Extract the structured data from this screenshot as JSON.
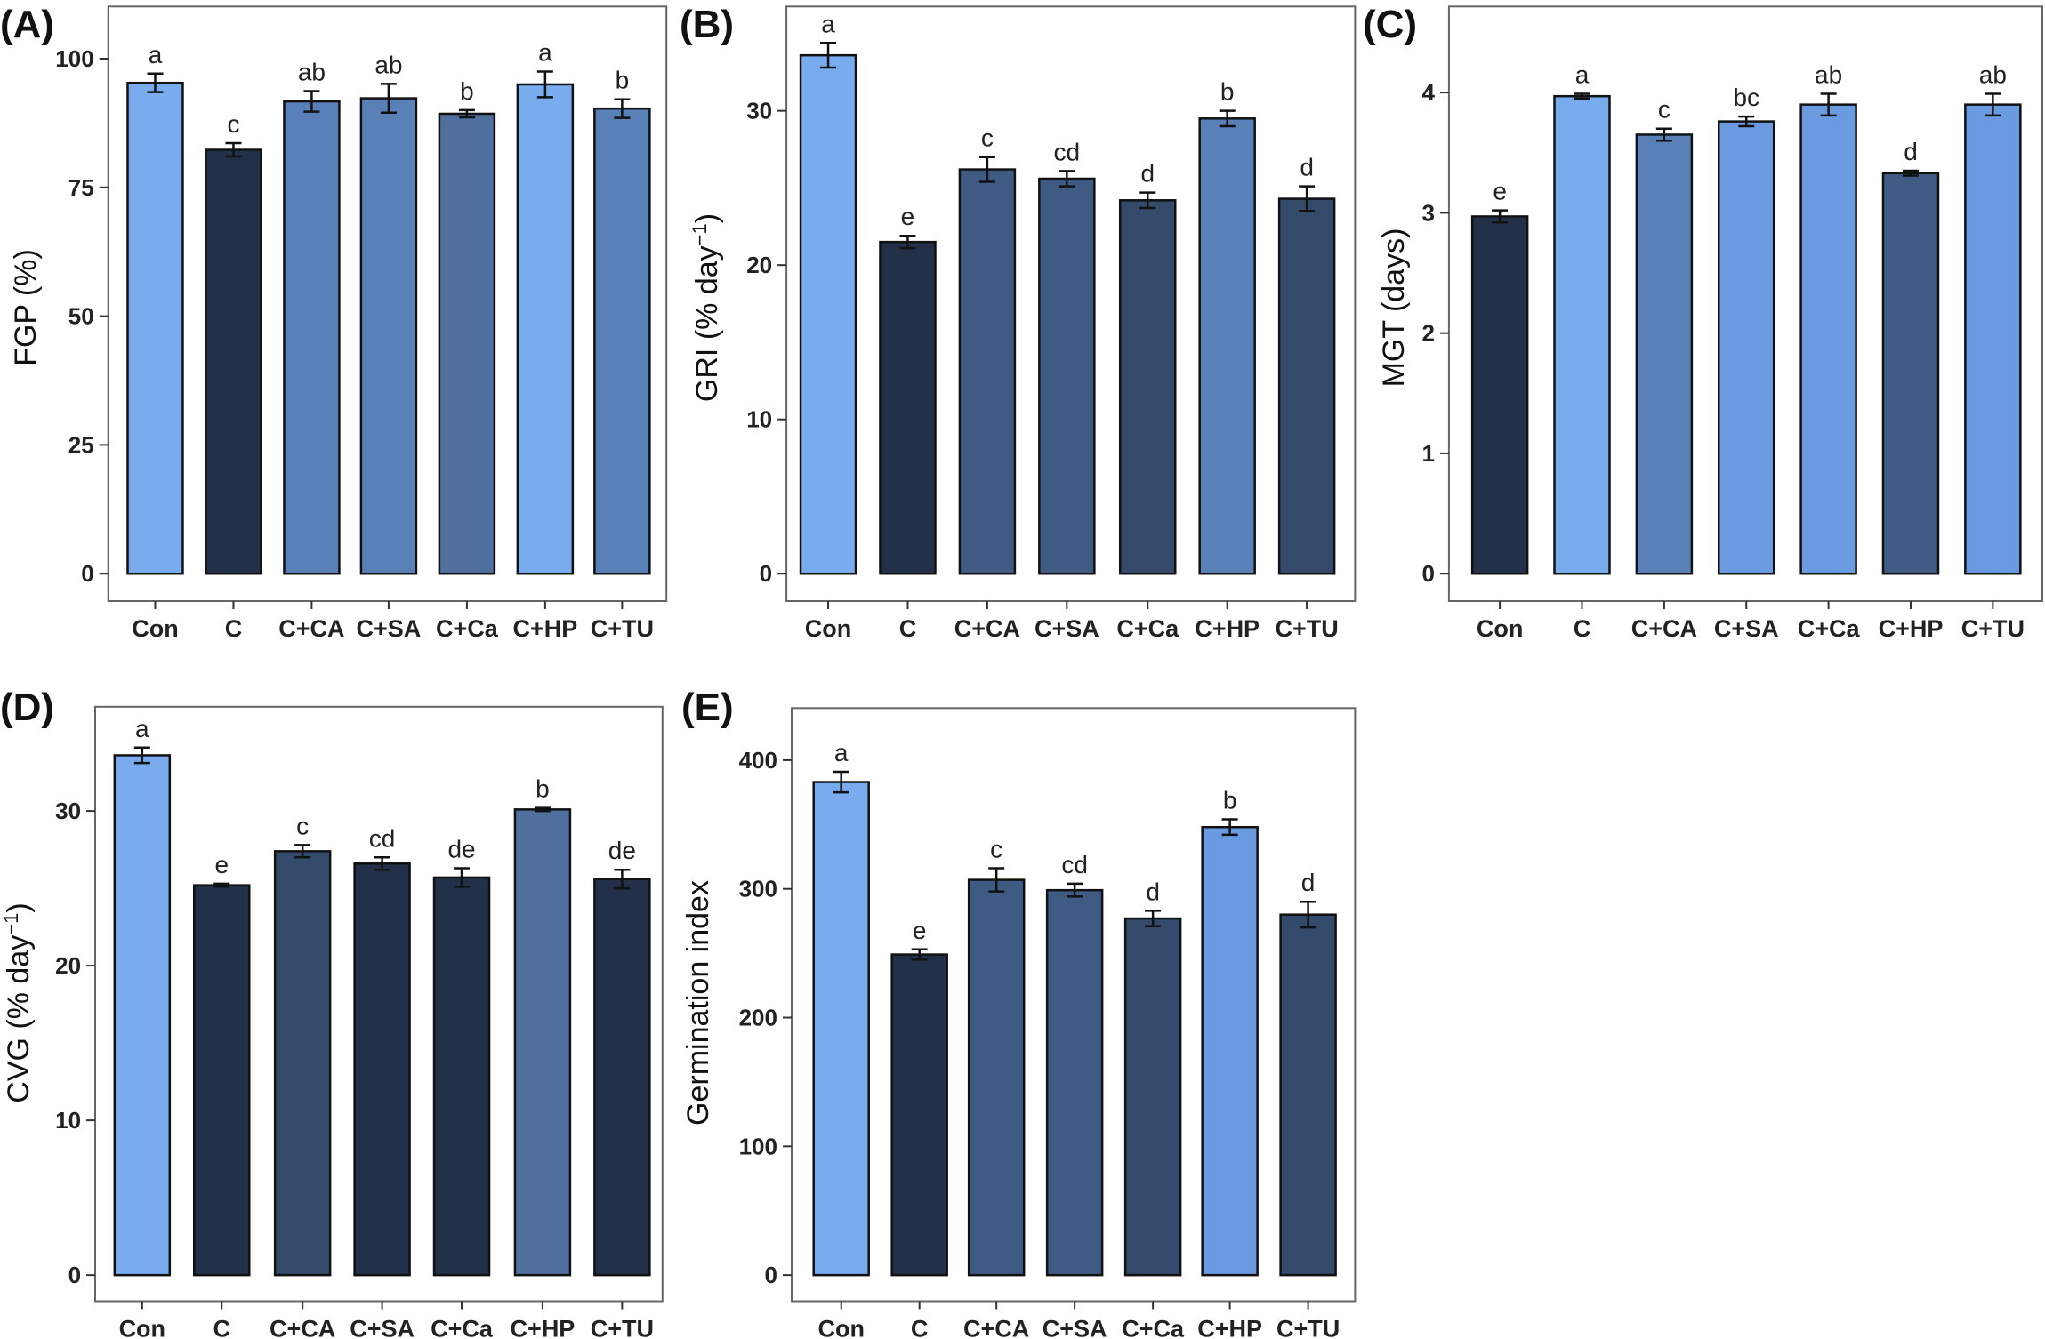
{
  "colors": {
    "light": "#78acef",
    "lightmid": "#6a9ae0",
    "mid": "#5a80b8",
    "midb": "#4f6f9f",
    "dark": "#3f5b84",
    "darker": "#334a6b",
    "darkest": "#223049"
  },
  "chart_data": [
    {
      "type": "bar",
      "panel": "(A)",
      "title": "",
      "xlabel": "",
      "ylabel": "FGP (%)",
      "ylim": [
        0,
        110
      ],
      "yticks": [
        "0",
        "25",
        "50",
        "75",
        "100"
      ],
      "categories": [
        "Con",
        "C",
        "C+CA",
        "C+SA",
        "C+Ca",
        "C+HP",
        "C+TU"
      ],
      "values": [
        95.3,
        82.3,
        91.7,
        92.3,
        89.3,
        95.0,
        90.3
      ],
      "errors": [
        1.8,
        1.3,
        2.0,
        2.8,
        0.7,
        2.5,
        1.8
      ],
      "letters": [
        "a",
        "c",
        "ab",
        "ab",
        "b",
        "a",
        "b"
      ],
      "colorKeys": [
        "light",
        "darkest",
        "mid",
        "mid",
        "midb",
        "light",
        "mid"
      ]
    },
    {
      "type": "bar",
      "panel": "(B)",
      "title": "",
      "xlabel": "",
      "ylabel": "GRI (% day",
      "ylabel_sup": "−1",
      "ylabel_end": ")",
      "ylim": [
        0,
        36.5
      ],
      "yticks": [
        "0",
        "10",
        "20",
        "30"
      ],
      "categories": [
        "Con",
        "C",
        "C+CA",
        "C+SA",
        "C+Ca",
        "C+HP",
        "C+TU"
      ],
      "values": [
        33.6,
        21.5,
        26.2,
        25.6,
        24.2,
        29.5,
        24.3
      ],
      "errors": [
        0.8,
        0.4,
        0.8,
        0.5,
        0.5,
        0.5,
        0.8
      ],
      "letters": [
        "a",
        "e",
        "c",
        "cd",
        "d",
        "b",
        "d"
      ],
      "colorKeys": [
        "light",
        "darkest",
        "dark",
        "dark",
        "darker",
        "mid",
        "darker"
      ]
    },
    {
      "type": "bar",
      "panel": "(C)",
      "title": "",
      "xlabel": "",
      "ylabel": "MGT (days)",
      "ylim": [
        0,
        4.6
      ],
      "yticks": [
        "0",
        "1",
        "2",
        "3",
        "4"
      ],
      "categories": [
        "Con",
        "C",
        "C+CA",
        "C+SA",
        "C+Ca",
        "C+HP",
        "C+TU"
      ],
      "values": [
        2.97,
        3.97,
        3.65,
        3.76,
        3.9,
        3.33,
        3.9
      ],
      "errors": [
        0.05,
        0.02,
        0.05,
        0.04,
        0.09,
        0.02,
        0.09
      ],
      "letters": [
        "e",
        "a",
        "c",
        "bc",
        "ab",
        "d",
        "ab"
      ],
      "colorKeys": [
        "darkest",
        "light",
        "mid",
        "lightmid",
        "lightmid",
        "dark",
        "lightmid"
      ]
    },
    {
      "type": "bar",
      "panel": "(D)",
      "title": "",
      "xlabel": "",
      "ylabel": "CVG (% day",
      "ylabel_sup": "−1",
      "ylabel_end": ")",
      "ylim": [
        0,
        36.5
      ],
      "yticks": [
        "0",
        "10",
        "20",
        "30"
      ],
      "categories": [
        "Con",
        "C",
        "C+CA",
        "C+SA",
        "C+Ca",
        "C+HP",
        "C+TU"
      ],
      "values": [
        33.6,
        25.2,
        27.4,
        26.6,
        25.7,
        30.1,
        25.6
      ],
      "errors": [
        0.5,
        0.1,
        0.4,
        0.4,
        0.6,
        0.1,
        0.6
      ],
      "letters": [
        "a",
        "e",
        "c",
        "cd",
        "de",
        "b",
        "de"
      ],
      "colorKeys": [
        "light",
        "darkest",
        "darker",
        "darkest",
        "darkest",
        "midb",
        "darkest"
      ]
    },
    {
      "type": "bar",
      "panel": "(E)",
      "title": "",
      "xlabel": "",
      "ylabel": "Germination index",
      "ylim": [
        0,
        440
      ],
      "yticks": [
        "0",
        "100",
        "200",
        "300",
        "400"
      ],
      "categories": [
        "Con",
        "C",
        "C+CA",
        "C+SA",
        "C+Ca",
        "C+HP",
        "C+TU"
      ],
      "values": [
        383,
        249,
        307,
        299,
        277,
        348,
        280
      ],
      "errors": [
        8,
        4,
        9,
        5,
        6,
        6,
        10
      ],
      "letters": [
        "a",
        "e",
        "c",
        "cd",
        "d",
        "b",
        "d"
      ],
      "colorKeys": [
        "light",
        "darkest",
        "dark",
        "dark",
        "darker",
        "lightmid",
        "darker"
      ]
    }
  ]
}
